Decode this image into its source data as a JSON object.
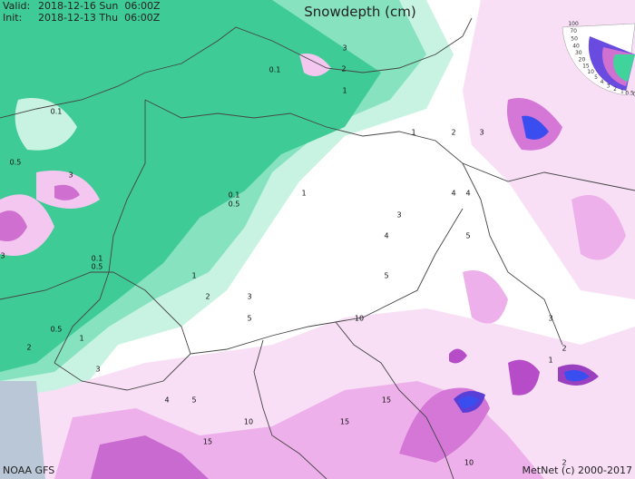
{
  "header": {
    "valid_label": "Valid:",
    "valid": "2018-12-16 Sun  06:00Z",
    "init_label": "Init:",
    "init": "2018-12-13 Thu  06:00Z",
    "title": "Snowdepth (cm)"
  },
  "legend": [
    "100",
    "70",
    "50",
    "40",
    "30",
    "20",
    "15",
    "10",
    "5",
    "4",
    "3",
    "2",
    "1",
    "0.5",
    "0.1"
  ],
  "contour_labels": [
    "0.1",
    "3",
    "2",
    "1",
    "0.1",
    "0.5",
    "3",
    "1",
    "2",
    "3",
    "0.1",
    "0.5",
    "1",
    "4",
    "4",
    "3",
    "4",
    "5",
    "3",
    "0.1",
    "0.5",
    "1",
    "5",
    "2",
    "3",
    "5",
    "10",
    "3",
    "0.5",
    "1",
    "2",
    "2",
    "1",
    "3",
    "4",
    "5",
    "15",
    "10",
    "15",
    "15",
    "10",
    "2"
  ],
  "footer": {
    "model": "NOAA GFS",
    "credit": "MetNet (c) 2000-2017"
  }
}
